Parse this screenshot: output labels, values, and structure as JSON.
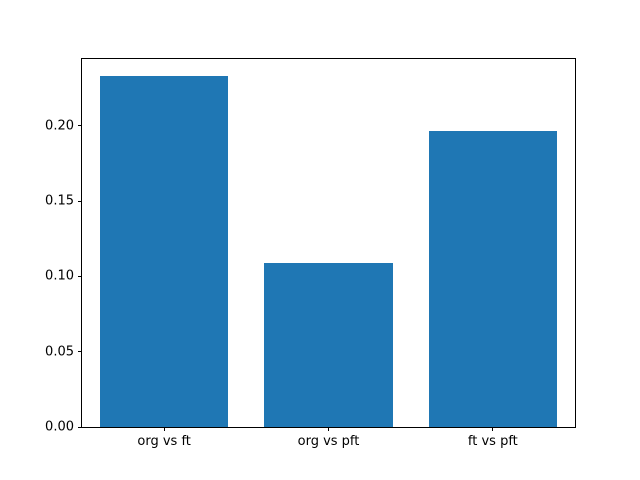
{
  "chart_data": {
    "type": "bar",
    "title": "",
    "xlabel": "",
    "ylabel": "",
    "categories": [
      "org vs ft",
      "org vs pft",
      "ft vs pft"
    ],
    "values": [
      0.233,
      0.109,
      0.197
    ],
    "ylim": [
      0,
      0.2445
    ],
    "yticks": [
      0.0,
      0.05,
      0.1,
      0.15,
      0.2
    ],
    "ytick_labels": [
      "0.00",
      "0.05",
      "0.10",
      "0.15",
      "0.20"
    ],
    "bar_color": "#1f77b4",
    "background_color": "#ffffff",
    "spine_color": "#000000",
    "bar_width_fraction": 0.78,
    "grid": false,
    "legend": null
  }
}
